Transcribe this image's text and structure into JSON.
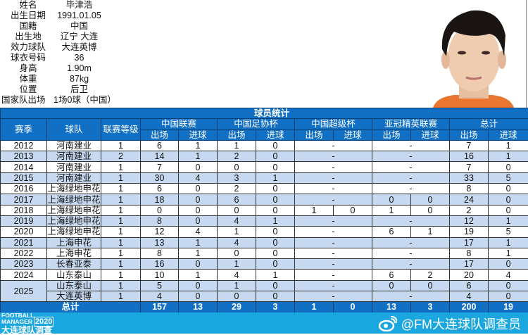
{
  "profile": [
    {
      "label": "姓名",
      "value": "毕津浩"
    },
    {
      "label": "出生日期",
      "value": "1991.01.05"
    },
    {
      "label": "国籍",
      "value": "中国"
    },
    {
      "label": "出生地",
      "value": "辽宁 大连"
    },
    {
      "label": "效力球队",
      "value": "大连英博"
    },
    {
      "label": "球衣号码",
      "value": "36"
    },
    {
      "label": "身高",
      "value": "1.90m"
    },
    {
      "label": "体重",
      "value": "87kg"
    },
    {
      "label": "位置",
      "value": "后卫"
    }
  ],
  "national": {
    "label": "国家队出场",
    "value": "1场0球（中国）"
  },
  "table": {
    "title": "球员统计",
    "headers": {
      "season": "赛季",
      "team": "球队",
      "level": "联赛等级",
      "league": "中国联赛",
      "fa_cup": "中国足协杯",
      "super_cup": "中国超级杯",
      "acl": "亚冠精英联赛",
      "total": "总计",
      "apps": "出场",
      "goals": "进球"
    },
    "rows": [
      {
        "season": "2012",
        "team": "河南建业",
        "level": "1",
        "league": [
          "6",
          "1"
        ],
        "fa": [
          "1",
          "0"
        ],
        "sup": null,
        "acl": null,
        "total": [
          "7",
          "1"
        ]
      },
      {
        "season": "2013",
        "team": "河南建业",
        "level": "2",
        "league": [
          "14",
          "1"
        ],
        "fa": [
          "2",
          "0"
        ],
        "sup": null,
        "acl": null,
        "total": [
          "16",
          "1"
        ]
      },
      {
        "season": "2014",
        "team": "河南建业",
        "level": "1",
        "league": [
          "7",
          "0"
        ],
        "fa": [
          "0",
          "0"
        ],
        "sup": null,
        "acl": null,
        "total": [
          "7",
          "0"
        ]
      },
      {
        "season": "2015",
        "team": "河南建业",
        "level": "1",
        "league": [
          "30",
          "4"
        ],
        "fa": [
          "3",
          "1"
        ],
        "sup": null,
        "acl": null,
        "total": [
          "33",
          "5"
        ]
      },
      {
        "season": "2016",
        "team": "上海绿地申花",
        "level": "1",
        "league": [
          "6",
          "0"
        ],
        "fa": [
          "2",
          "0"
        ],
        "sup": null,
        "acl": null,
        "total": [
          "8",
          "0"
        ]
      },
      {
        "season": "2017",
        "team": "上海绿地申花",
        "level": "1",
        "league": [
          "18",
          "0"
        ],
        "fa": [
          "6",
          "0"
        ],
        "sup": null,
        "acl": [
          "0",
          "0"
        ],
        "total": [
          "24",
          "0"
        ]
      },
      {
        "season": "2018",
        "team": "上海绿地申花",
        "level": "1",
        "league": [
          "0",
          "0"
        ],
        "fa": [
          "0",
          "0"
        ],
        "sup": [
          "1",
          "0"
        ],
        "acl": [
          "1",
          "0"
        ],
        "total": [
          "2",
          "0"
        ]
      },
      {
        "season": "2019",
        "team": "上海绿地申花",
        "level": "1",
        "league": [
          "8",
          "0"
        ],
        "fa": [
          "4",
          "1"
        ],
        "sup": null,
        "acl": null,
        "total": [
          "12",
          "1"
        ]
      },
      {
        "season": "2020",
        "team": "上海绿地申花",
        "level": "1",
        "league": [
          "12",
          "4"
        ],
        "fa": [
          "1",
          "0"
        ],
        "sup": null,
        "acl": [
          "6",
          "1"
        ],
        "total": [
          "19",
          "5"
        ]
      },
      {
        "season": "2021",
        "team": "上海申花",
        "level": "1",
        "league": [
          "13",
          "1"
        ],
        "fa": [
          "4",
          "0"
        ],
        "sup": null,
        "acl": null,
        "total": [
          "17",
          "1"
        ]
      },
      {
        "season": "2022",
        "team": "上海申花",
        "level": "1",
        "league": [
          "8",
          "1"
        ],
        "fa": [
          "0",
          "0"
        ],
        "sup": null,
        "acl": null,
        "total": [
          "8",
          "1"
        ]
      },
      {
        "season": "2023",
        "team": "长春亚泰",
        "level": "1",
        "league": [
          "16",
          "0"
        ],
        "fa": [
          "1",
          "0"
        ],
        "sup": null,
        "acl": null,
        "total": [
          "17",
          "0"
        ]
      },
      {
        "season": "2024",
        "team": "山东泰山",
        "level": "1",
        "league": [
          "10",
          "1"
        ],
        "fa": [
          "4",
          "1"
        ],
        "sup": null,
        "acl": [
          "6",
          "2"
        ],
        "total": [
          "20",
          "4"
        ]
      },
      {
        "season": "2025",
        "team": "山东泰山",
        "level": "1",
        "league": [
          "5",
          "0"
        ],
        "fa": [
          "1",
          "0"
        ],
        "sup": null,
        "acl": [
          "0",
          "0"
        ],
        "total": [
          "6",
          "0"
        ]
      },
      {
        "season": "2025",
        "team": "大连英博",
        "level": "1",
        "league": [
          "4",
          "0"
        ],
        "fa": [
          "0",
          "0"
        ],
        "sup": null,
        "acl": null,
        "total": [
          "4",
          "0"
        ]
      }
    ],
    "dash": "-",
    "totals": {
      "label": "总计",
      "league": [
        "157",
        "13"
      ],
      "fa": [
        "29",
        "3"
      ],
      "sup": [
        "1",
        "0"
      ],
      "acl": [
        "13",
        "3"
      ],
      "total": [
        "200",
        "19"
      ]
    }
  },
  "footer": {
    "logo_line1": "FOOTBALL",
    "logo_line2": "MANAGER",
    "logo_year": "2020",
    "logo_cn": "大连球队调查",
    "weibo_handle": "@FM大连球队调查员"
  },
  "colors": {
    "header_blue": "#1170c4",
    "row_alt": "#c6d9f0",
    "footer_cyan": "#1aa7e0"
  }
}
